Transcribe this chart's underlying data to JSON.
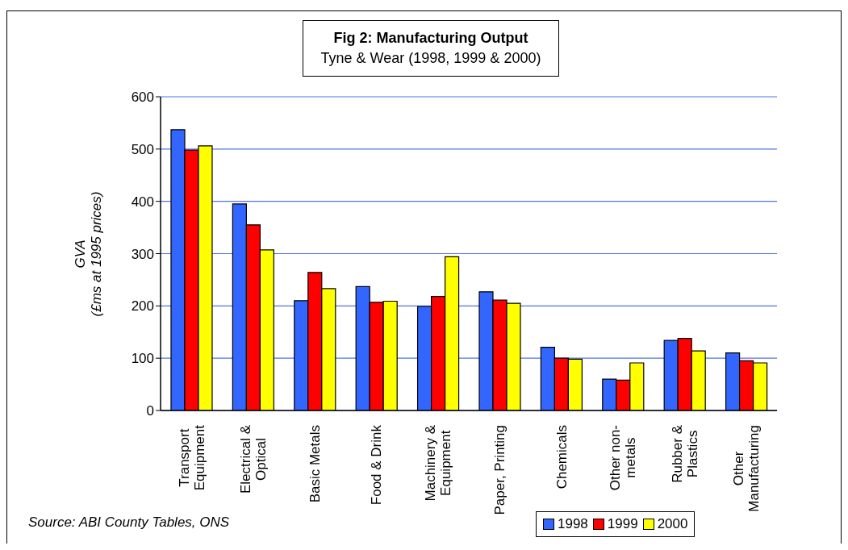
{
  "chart_data": {
    "type": "bar",
    "title": "Fig 2: Manufacturing Output",
    "subtitle": "Tyne & Wear (1998, 1999 & 2000)",
    "ylabel": "GVA\n(£ms at 1995 prices)",
    "annotations": [
      "Source: ABI County Tables, ONS"
    ],
    "categories": [
      "Transport Equipment",
      "Electrical & Optical",
      "Basic Metals",
      "Food & Drink",
      "Machinery & Equipment",
      "Paper, Printing",
      "Chemicals",
      "Other non-metals",
      "Rubber & Plastics",
      "Other Manufacturing"
    ],
    "series": [
      {
        "name": "1998",
        "color": "#3366ff",
        "values": [
          537,
          395,
          210,
          237,
          199,
          227,
          121,
          60,
          134,
          110
        ]
      },
      {
        "name": "1999",
        "color": "#ff0000",
        "values": [
          498,
          355,
          264,
          207,
          218,
          211,
          100,
          58,
          138,
          95
        ]
      },
      {
        "name": "2000",
        "color": "#ffff00",
        "values": [
          506,
          307,
          233,
          209,
          294,
          205,
          98,
          91,
          114,
          91
        ]
      }
    ],
    "ylim": [
      0,
      600
    ],
    "yticks": [
      0,
      100,
      200,
      300,
      400,
      500,
      600
    ],
    "grid": "y",
    "legend": "bottom right"
  }
}
